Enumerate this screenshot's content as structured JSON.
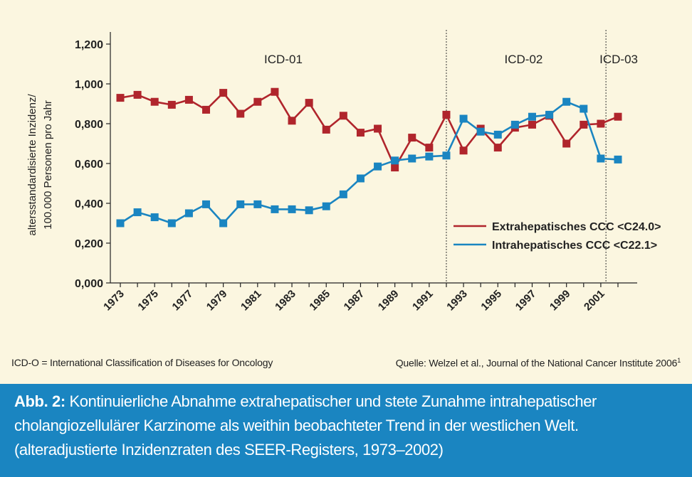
{
  "chart_data": {
    "type": "line",
    "ylabel_lines": [
      "altersstandardisierte Inzidenz/",
      "100.000 Personen pro Jahr"
    ],
    "xlabel": "",
    "ylim": [
      0,
      1.2
    ],
    "yticks": [
      "0,000",
      "0,200",
      "0,400",
      "0,600",
      "0,800",
      "1,000",
      "1,200"
    ],
    "xticks": [
      "1973",
      "1975",
      "1977",
      "1979",
      "1981",
      "1983",
      "1985",
      "1987",
      "1989",
      "1991",
      "1993",
      "1995",
      "1997",
      "1999",
      "2001"
    ],
    "x": [
      1973,
      1974,
      1975,
      1976,
      1977,
      1978,
      1979,
      1980,
      1981,
      1982,
      1983,
      1984,
      1985,
      1986,
      1987,
      1988,
      1989,
      1990,
      1991,
      1992,
      1993,
      1994,
      1995,
      1996,
      1997,
      1998,
      1999,
      2000,
      2001,
      2002
    ],
    "series": [
      {
        "name": "Extrahepatisches CCC <C24.0>",
        "color": "#b0252c",
        "values": [
          0.93,
          0.945,
          0.91,
          0.895,
          0.92,
          0.87,
          0.955,
          0.85,
          0.91,
          0.96,
          0.815,
          0.905,
          0.77,
          0.84,
          0.755,
          0.775,
          0.58,
          0.73,
          0.68,
          0.845,
          0.665,
          0.775,
          0.68,
          0.78,
          0.795,
          0.84,
          0.7,
          0.795,
          0.8,
          0.835
        ]
      },
      {
        "name": "Intrahepatisches CCC <C22.1>",
        "color": "#1a85c1",
        "values": [
          0.3,
          0.355,
          0.33,
          0.3,
          0.35,
          0.395,
          0.3,
          0.395,
          0.395,
          0.37,
          0.37,
          0.365,
          0.385,
          0.445,
          0.525,
          0.585,
          0.615,
          0.625,
          0.635,
          0.64,
          0.825,
          0.76,
          0.745,
          0.795,
          0.835,
          0.845,
          0.91,
          0.875,
          0.625,
          0.62
        ]
      }
    ],
    "periods": [
      {
        "label": "ICD-01",
        "center": 1982.5
      },
      {
        "label": "ICD-02",
        "center": 1996.5
      },
      {
        "label": "ICD-03",
        "center": 2002.0
      }
    ],
    "dividers": [
      1992.0,
      2001.3
    ],
    "grid": false,
    "legend_position": "right-center"
  },
  "footnotes": {
    "left": "ICD-O = International Classification of Diseases for Oncology",
    "right": "Quelle: Welzel et al., Journal of the National Cancer Institute 2006",
    "right_sup": "1"
  },
  "caption": {
    "label": "Abb. 2:",
    "line1": " Kontinuierliche Abnahme extrahepatischer und stete Zunahme intrahepatischer",
    "line2": "cholangiozellulärer Karzinome als weithin beobachteter Trend in der westlichen Welt.",
    "line3": "(alteradjustierte Inzidenzraten des SEER-Registers, 1973–2002)"
  },
  "colors": {
    "background": "#fbf6e0",
    "caption_background": "#1a85c1",
    "extrahepatic": "#b0252c",
    "intrahepatic": "#1a85c1"
  }
}
